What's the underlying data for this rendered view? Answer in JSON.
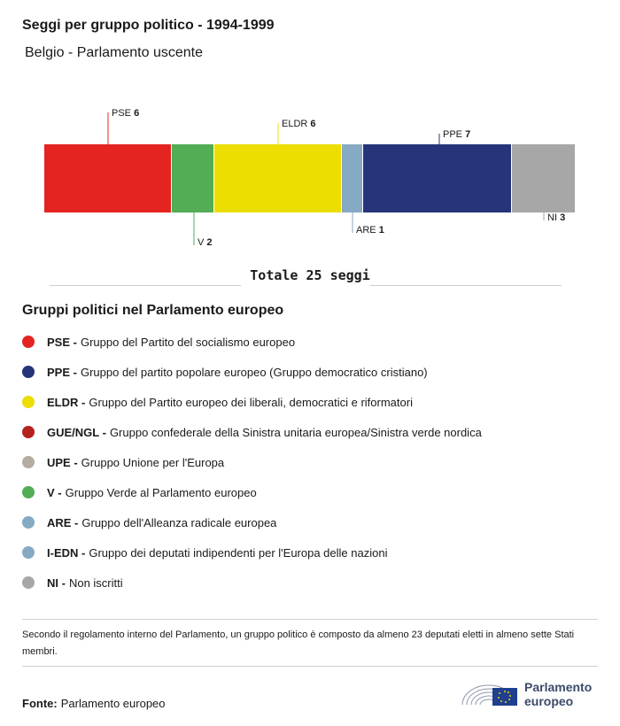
{
  "header": {
    "title": "Seggi per gruppo politico - 1994-1999",
    "subtitle": "Belgio - Parlamento uscente"
  },
  "chart_data": {
    "type": "bar",
    "orientation": "stacked-horizontal",
    "total_label": "Totale 25 seggi",
    "total": 25,
    "segments": [
      {
        "abbr": "PSE",
        "value": 6,
        "color": "#e52421",
        "label_side": "top",
        "label_level": 1
      },
      {
        "abbr": "V",
        "value": 2,
        "color": "#52ad54",
        "label_side": "bottom",
        "label_level": 2
      },
      {
        "abbr": "ELDR",
        "value": 6,
        "color": "#ecde00",
        "label_side": "top",
        "label_level": 2
      },
      {
        "abbr": "ARE",
        "value": 1,
        "color": "#86aac3",
        "label_side": "bottom",
        "label_level": 1
      },
      {
        "abbr": "PPE",
        "value": 7,
        "color": "#263479",
        "label_side": "top",
        "label_level": 3
      },
      {
        "abbr": "NI",
        "value": 3,
        "color": "#a7a7a7",
        "label_side": "bottom",
        "label_level": 0
      }
    ]
  },
  "legend": {
    "title": "Gruppi politici nel Parlamento europeo",
    "items": [
      {
        "abbr": "PSE -",
        "desc": "Gruppo del Partito del socialismo europeo",
        "color": "#e52421"
      },
      {
        "abbr": "PPE -",
        "desc": "Gruppo del partito popolare europeo (Gruppo democratico cristiano)",
        "color": "#263479"
      },
      {
        "abbr": "ELDR -",
        "desc": "Gruppo del Partito europeo dei liberali, democratici e riformatori",
        "color": "#ecde00"
      },
      {
        "abbr": "GUE/NGL -",
        "desc": "Gruppo confederale della Sinistra unitaria europea/Sinistra verde nordica",
        "color": "#b4221f"
      },
      {
        "abbr": "UPE -",
        "desc": "Gruppo Unione per l'Europa",
        "color": "#b5ada0"
      },
      {
        "abbr": "V -",
        "desc": "Gruppo Verde al Parlamento europeo",
        "color": "#52ad54"
      },
      {
        "abbr": "ARE -",
        "desc": "Gruppo dell'Alleanza radicale europea",
        "color": "#86aac3"
      },
      {
        "abbr": "I-EDN -",
        "desc": "Gruppo dei deputati indipendenti per l'Europa delle nazioni",
        "color": "#86aac3"
      },
      {
        "abbr": "NI -",
        "desc": "Non iscritti",
        "color": "#a7a7a7"
      }
    ]
  },
  "footer": {
    "note": "Secondo il regolamento interno del Parlamento, un gruppo politico è composto da almeno 23 deputati eletti in almeno sette Stati membri.",
    "source_label": "Fonte:",
    "source_value": "Parlamento europeo",
    "logo_line1": "Parlamento",
    "logo_line2": "europeo"
  }
}
